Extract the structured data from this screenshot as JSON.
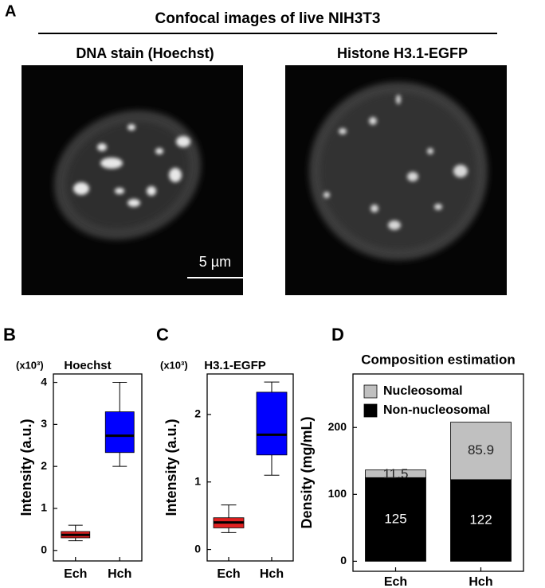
{
  "panel_a": {
    "letter": "A",
    "title": "Confocal images of live NIH3T3",
    "images": [
      {
        "label": "DNA stain (Hoechst)"
      },
      {
        "label": "Histone H3.1-EGFP"
      }
    ],
    "scale_bar": "5 µm"
  },
  "chart_data": [
    {
      "type": "box",
      "letter": "B",
      "title": "Hoechst",
      "y_unit_note": "(x10³)",
      "y_label": "Intensity (a.u.)",
      "categories": [
        "Ech",
        "Hch"
      ],
      "colors": [
        "#e02020",
        "#0000ff"
      ],
      "min": [
        0.23,
        2.0
      ],
      "q1": [
        0.3,
        2.33
      ],
      "median": [
        0.37,
        2.73
      ],
      "q3": [
        0.45,
        3.3
      ],
      "max": [
        0.6,
        4.0
      ],
      "ylim": [
        -0.25,
        4.2
      ],
      "yticks": [
        0,
        1,
        2,
        3,
        4
      ]
    },
    {
      "type": "box",
      "letter": "C",
      "title": "H3.1-EGFP",
      "y_unit_note": "(x10³)",
      "y_label": "Intensity (a.u.)",
      "categories": [
        "Ech",
        "Hch"
      ],
      "colors": [
        "#e02020",
        "#0000ff"
      ],
      "min": [
        0.25,
        1.1
      ],
      "q1": [
        0.32,
        1.4
      ],
      "median": [
        0.4,
        1.7
      ],
      "q3": [
        0.47,
        2.33
      ],
      "max": [
        0.66,
        2.48
      ],
      "ylim": [
        -0.17,
        2.6
      ],
      "yticks": [
        0,
        1,
        2
      ]
    },
    {
      "type": "stacked_bar",
      "letter": "D",
      "title": "Composition estimation",
      "y_label": "Density (mg/mL)",
      "categories": [
        "Ech",
        "Hch"
      ],
      "series": [
        {
          "name": "Non-nucleosomal",
          "color": "#000000",
          "values": [
            125,
            122
          ]
        },
        {
          "name": "Nucleosomal",
          "color": "#c0c0c0",
          "values": [
            11.5,
            85.9
          ]
        }
      ],
      "ylim": [
        -15,
        280
      ],
      "yticks": [
        0,
        100,
        200
      ],
      "legend": "top-left"
    }
  ]
}
